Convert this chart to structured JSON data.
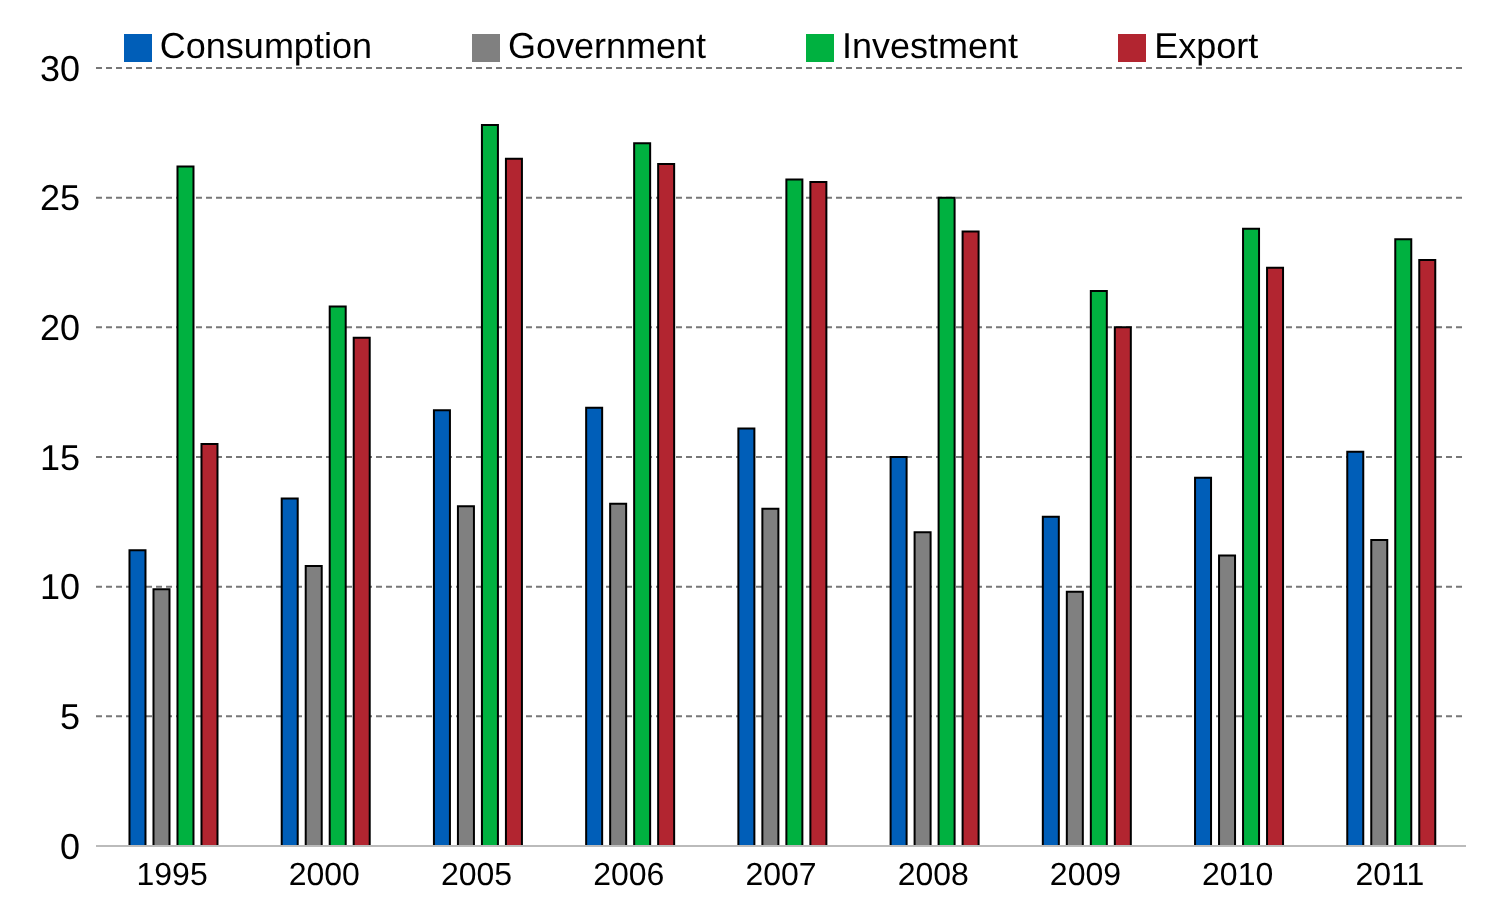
{
  "chart_data": {
    "type": "bar",
    "categories": [
      "1995",
      "2000",
      "2005",
      "2006",
      "2007",
      "2008",
      "2009",
      "2010",
      "2011"
    ],
    "series": [
      {
        "name": "Consumption",
        "color": "#005eb8",
        "values": [
          11.4,
          13.4,
          16.8,
          16.9,
          16.1,
          15.0,
          12.7,
          14.2,
          15.2
        ]
      },
      {
        "name": "Government",
        "color": "#808080",
        "values": [
          9.9,
          10.8,
          13.1,
          13.2,
          13.0,
          12.1,
          9.8,
          11.2,
          11.8
        ]
      },
      {
        "name": "Investment",
        "color": "#00b140",
        "values": [
          26.2,
          20.8,
          27.8,
          27.1,
          25.7,
          25.0,
          21.4,
          23.8,
          23.4
        ]
      },
      {
        "name": "Export",
        "color": "#b22530",
        "values": [
          15.5,
          19.6,
          26.5,
          26.3,
          25.6,
          23.7,
          20.0,
          22.3,
          22.6
        ]
      }
    ],
    "ylim": [
      0,
      30
    ],
    "yticks": [
      0,
      5,
      10,
      15,
      20,
      25,
      30
    ],
    "grid": "y",
    "legend": "top"
  }
}
